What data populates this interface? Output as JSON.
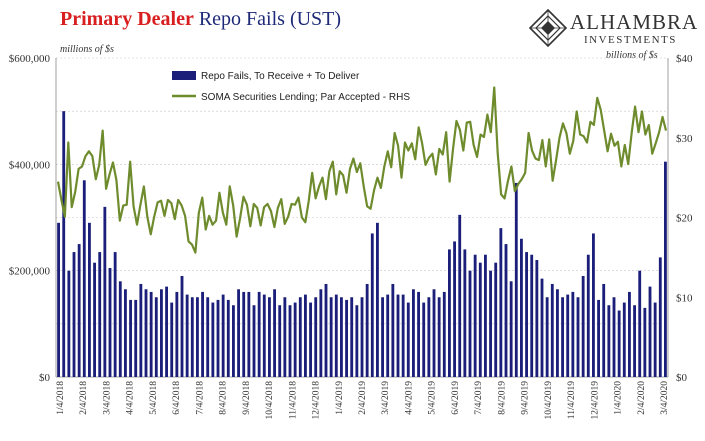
{
  "header": {
    "title_part1": "Primary Dealer",
    "title_part2": "Repo Fails (UST)"
  },
  "brand": {
    "name": "ALHAMBRA",
    "sub": "INVESTMENTS"
  },
  "colors": {
    "bars": "#1b1f7a",
    "line": "#6e8c2d",
    "title_red": "#d81e1e",
    "title_blue": "#1e2a78"
  },
  "chart_data": {
    "type": "bar",
    "title": "Primary Dealer Repo Fails (UST)",
    "left_axis_unit": "millions of $s",
    "right_axis_unit": "billions of $s",
    "ylim": [
      0,
      600000
    ],
    "y2lim": [
      0,
      40
    ],
    "y_ticks": [
      "$0",
      "$200,000",
      "$400,000",
      "$600,000"
    ],
    "y2_ticks": [
      "$0",
      "$10",
      "$20",
      "$30",
      "$40"
    ],
    "grid": true,
    "legend_position": "top",
    "x_tick_labels": [
      "1/4/2018",
      "2/4/2018",
      "3/4/2018",
      "4/4/2018",
      "5/4/2018",
      "6/4/2018",
      "7/4/2018",
      "8/4/2018",
      "9/4/2018",
      "10/4/2018",
      "11/4/2018",
      "12/4/2018",
      "1/4/2019",
      "2/4/2019",
      "3/4/2019",
      "4/4/2019",
      "5/4/2019",
      "6/4/2019",
      "7/4/2019",
      "8/4/2019",
      "9/4/2019",
      "10/4/2019",
      "11/4/2019",
      "12/4/2019",
      "1/4/2020",
      "2/4/2020",
      "3/4/2020"
    ],
    "series": [
      {
        "name": "Repo Fails, To Receive + To Deliver",
        "type": "bar",
        "axis": "left",
        "values": [
          290000,
          500000,
          200000,
          235000,
          250000,
          370000,
          290000,
          215000,
          235000,
          320000,
          205000,
          235000,
          180000,
          165000,
          145000,
          145000,
          175000,
          165000,
          160000,
          150000,
          165000,
          170000,
          140000,
          160000,
          190000,
          155000,
          150000,
          150000,
          160000,
          150000,
          140000,
          145000,
          155000,
          145000,
          135000,
          165000,
          160000,
          160000,
          135000,
          160000,
          155000,
          150000,
          165000,
          135000,
          150000,
          135000,
          140000,
          150000,
          155000,
          140000,
          150000,
          165000,
          175000,
          150000,
          155000,
          150000,
          145000,
          150000,
          135000,
          150000,
          175000,
          270000,
          290000,
          150000,
          155000,
          175000,
          155000,
          155000,
          140000,
          165000,
          160000,
          140000,
          150000,
          165000,
          150000,
          160000,
          240000,
          255000,
          305000,
          240000,
          200000,
          230000,
          215000,
          230000,
          200000,
          215000,
          280000,
          250000,
          180000,
          365000,
          260000,
          235000,
          230000,
          220000,
          185000,
          150000,
          175000,
          165000,
          150000,
          155000,
          160000,
          150000,
          190000,
          230000,
          270000,
          145000,
          175000,
          135000,
          150000,
          125000,
          140000,
          160000,
          135000,
          200000,
          130000,
          170000,
          140000,
          225000,
          405000
        ]
      },
      {
        "name": "SOMA Securities Lending; Par Accepted - RHS",
        "type": "line",
        "axis": "right",
        "values": [
          24.5,
          22.2,
          20.1,
          29.4,
          21.3,
          23.2,
          26.1,
          26.4,
          27.7,
          28.3,
          27.7,
          24.8,
          26.6,
          30.9,
          23.6,
          25.4,
          26.9,
          24.7,
          19.6,
          21.5,
          21.6,
          27.0,
          21.4,
          19.1,
          21.6,
          23.9,
          20.1,
          17.9,
          20.1,
          21.9,
          22.1,
          20.2,
          22.2,
          21.8,
          19.8,
          22.2,
          21.5,
          20.2,
          17.0,
          16.6,
          15.6,
          20.6,
          22.5,
          18.5,
          20.2,
          19.1,
          19.6,
          23.1,
          20.6,
          19.1,
          23.9,
          21.5,
          17.6,
          19.9,
          22.6,
          21.6,
          18.9,
          21.7,
          21.2,
          19.0,
          21.3,
          21.7,
          20.8,
          18.8,
          21.2,
          22.3,
          19.2,
          20.1,
          21.7,
          21.6,
          22.5,
          20.0,
          19.4,
          22.1,
          25.6,
          22.4,
          23.9,
          25.0,
          22.3,
          25.8,
          27.0,
          22.9,
          25.8,
          25.3,
          23.1,
          26.1,
          27.4,
          25.7,
          26.8,
          23.9,
          21.4,
          21.1,
          23.4,
          25.0,
          23.7,
          26.4,
          28.3,
          26.3,
          30.6,
          29.0,
          25.0,
          29.4,
          28.4,
          29.3,
          27.3,
          31.3,
          29.3,
          26.6,
          27.5,
          28.0,
          25.4,
          28.6,
          27.9,
          30.7,
          24.5,
          28.6,
          32.1,
          31.0,
          28.4,
          31.9,
          32.0,
          29.1,
          27.6,
          30.4,
          30.1,
          32.9,
          30.7,
          36.3,
          28.1,
          22.9,
          22.4,
          24.6,
          26.4,
          23.3,
          24.2,
          24.8,
          25.6,
          30.6,
          28.4,
          27.4,
          27.2,
          29.7,
          26.4,
          29.8,
          24.6,
          27.2,
          30.0,
          31.8,
          30.6,
          28.0,
          29.6,
          33.3,
          30.4,
          30.2,
          29.4,
          32.0,
          31.6,
          35.0,
          33.5,
          30.9,
          28.3,
          30.5,
          29.0,
          29.5,
          26.4,
          29.1,
          26.7,
          30.6,
          33.9,
          30.7,
          33.3,
          30.4,
          31.6,
          28.0,
          29.3,
          30.7,
          32.6,
          30.9
        ]
      }
    ]
  }
}
